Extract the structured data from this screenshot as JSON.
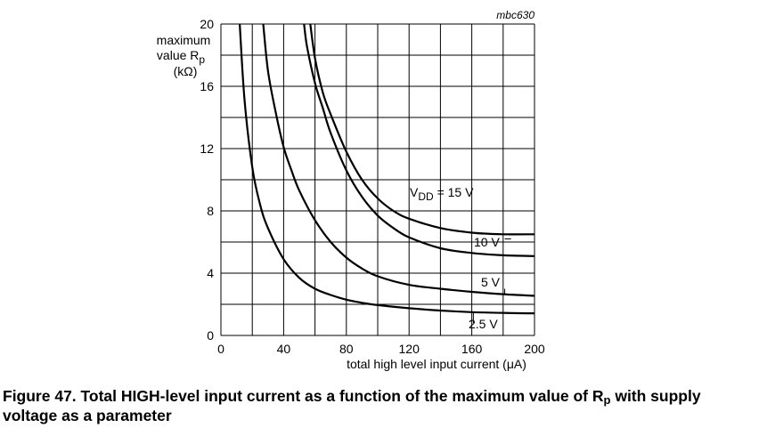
{
  "chart_data": {
    "type": "line",
    "code": "mbc630",
    "ylabel_lines": [
      "maximum",
      "value R",
      "(kΩ)"
    ],
    "ylabel_sub": "p",
    "xlabel": "total high level input current (μA)",
    "xlim": [
      0,
      200
    ],
    "ylim": [
      0,
      20
    ],
    "xticks": [
      0,
      40,
      80,
      120,
      160,
      200
    ],
    "yticks": [
      0,
      4,
      8,
      12,
      16,
      20
    ],
    "grid": true,
    "series": [
      {
        "name": "2.5 V",
        "label_main": "2.5 V",
        "label_sub": "",
        "x": [
          12,
          15,
          20,
          25,
          30,
          40,
          50,
          60,
          70,
          80,
          90,
          100,
          120,
          140,
          160,
          180,
          200
        ],
        "y": [
          20,
          15.2,
          10.8,
          8.4,
          6.9,
          4.9,
          3.7,
          3.0,
          2.6,
          2.3,
          2.1,
          1.95,
          1.75,
          1.6,
          1.5,
          1.45,
          1.42
        ]
      },
      {
        "name": "5 V",
        "label_main": "5 V",
        "label_sub": "",
        "x": [
          27,
          30,
          35,
          40,
          45,
          50,
          60,
          70,
          80,
          90,
          100,
          120,
          140,
          160,
          180,
          200
        ],
        "y": [
          20,
          17,
          14.3,
          12.1,
          10.6,
          9.3,
          7.4,
          6.0,
          5.0,
          4.3,
          3.8,
          3.25,
          3.0,
          2.8,
          2.65,
          2.55
        ]
      },
      {
        "name": "10 V",
        "label_main": "10 V",
        "label_sub": "",
        "x": [
          53,
          55,
          60,
          65,
          70,
          80,
          90,
          100,
          110,
          120,
          140,
          160,
          180,
          200
        ],
        "y": [
          20,
          18.5,
          16.2,
          14.6,
          13.0,
          10.6,
          8.9,
          7.7,
          6.9,
          6.3,
          5.6,
          5.3,
          5.15,
          5.1
        ]
      },
      {
        "name": "VDD = 15 V",
        "label_main": "V",
        "label_sub": "DD",
        "label_rest": " = 15 V",
        "x": [
          57,
          60,
          65,
          70,
          80,
          90,
          100,
          110,
          120,
          140,
          160,
          180,
          200
        ],
        "y": [
          20,
          17.8,
          15.6,
          14.2,
          11.8,
          10.0,
          8.8,
          8.0,
          7.5,
          6.9,
          6.6,
          6.5,
          6.5
        ]
      }
    ]
  },
  "caption": {
    "main": "Figure 47.  Total HIGH-level input current as a function of the maximum value of R",
    "sub": "p",
    "rest": " with supply voltage as a parameter"
  }
}
